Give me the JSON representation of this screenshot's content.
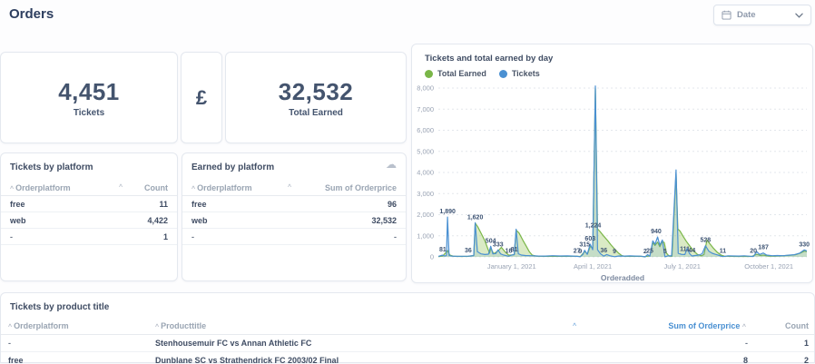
{
  "page": {
    "title": "Orders"
  },
  "toolbar": {
    "date_button": {
      "label": "Date",
      "icon": "calendar-icon",
      "chevron_icon": "chevron-down-icon"
    }
  },
  "icons": {
    "sort_caret": "^",
    "cloud_export": "☁"
  },
  "colors": {
    "accent_blue": "#4a90d2",
    "accent_green": "#7ab648",
    "text_dark": "#3f4c63",
    "text_gray": "#9aa5b3"
  },
  "kpis": {
    "tickets": {
      "value": "4,451",
      "label": "Tickets"
    },
    "currency": {
      "symbol": "£"
    },
    "total_earned": {
      "value": "32,532",
      "label": "Total Earned"
    }
  },
  "tables": {
    "tickets_by_platform": {
      "title": "Tickets by platform",
      "columns": [
        "Orderplatform",
        "Count"
      ],
      "rows": [
        [
          "free",
          "11"
        ],
        [
          "web",
          "4,422"
        ],
        [
          "-",
          "1"
        ]
      ]
    },
    "earned_by_platform": {
      "title": "Earned by platform",
      "columns": [
        "Orderplatform",
        "Sum of Orderprice"
      ],
      "rows": [
        [
          "free",
          "96"
        ],
        [
          "web",
          "32,532"
        ],
        [
          "-",
          "-"
        ]
      ]
    },
    "tickets_by_product_title": {
      "title": "Tickets by product title",
      "columns": [
        "Orderplatform",
        "Producttitle",
        "Sum of Orderprice",
        "Count"
      ],
      "sorted_column": "Sum of Orderprice",
      "rows": [
        [
          "-",
          "Stenhousemuir FC vs Annan Athletic FC",
          "-",
          "1"
        ],
        [
          "free",
          "Dunblane SC vs Strathendrick FC 2003/02 Final",
          "8",
          "2"
        ]
      ]
    }
  },
  "chart_data": {
    "type": "line",
    "title": "Tickets and total earned by day",
    "xlabel": "Orderadded",
    "ylabel": "",
    "ylim": [
      0,
      8000
    ],
    "grid": "dashed-horizontal",
    "legend_position": "top-left",
    "y_ticks": [
      "0",
      "1,000",
      "2,000",
      "3,000",
      "4,000",
      "5,000",
      "6,000",
      "7,000",
      "8,000"
    ],
    "x_ticks": [
      {
        "label": "January 1, 2021",
        "pos": 19.9
      },
      {
        "label": "April 1, 2021",
        "pos": 41.9
      },
      {
        "label": "July 1, 2021",
        "pos": 66.2
      },
      {
        "label": "October 1, 2021",
        "pos": 89.7
      }
    ],
    "series": [
      {
        "name": "Total Earned",
        "color": "#7ab648",
        "fill": "rgba(150,195,90,0.35)",
        "points": [
          [
            0,
            14
          ],
          [
            1.2,
            45
          ],
          [
            2.5,
            300
          ],
          [
            3.1,
            85
          ],
          [
            4.2,
            26
          ],
          [
            6,
            20
          ],
          [
            8.1,
            25
          ],
          [
            9.6,
            65
          ],
          [
            10,
            1600
          ],
          [
            10.7,
            1430
          ],
          [
            11.6,
            1120
          ],
          [
            12.6,
            770
          ],
          [
            13.4,
            400
          ],
          [
            13.9,
            170
          ],
          [
            14.2,
            420
          ],
          [
            15,
            150
          ],
          [
            16.2,
            280
          ],
          [
            17.1,
            450
          ],
          [
            18.1,
            240
          ],
          [
            19.1,
            80
          ],
          [
            20.6,
            100
          ],
          [
            21.1,
            1270
          ],
          [
            21.9,
            1130
          ],
          [
            22.9,
            800
          ],
          [
            23.9,
            500
          ],
          [
            24.7,
            240
          ],
          [
            25.5,
            80
          ],
          [
            26.6,
            35
          ],
          [
            28.5,
            26
          ],
          [
            30.5,
            26
          ],
          [
            32.5,
            28
          ],
          [
            34.5,
            26
          ],
          [
            36.5,
            28
          ],
          [
            37.6,
            36
          ],
          [
            38.5,
            16
          ],
          [
            39.7,
            250
          ],
          [
            40.5,
            150
          ],
          [
            41.2,
            500
          ],
          [
            41.9,
            420
          ],
          [
            42.6,
            7980
          ],
          [
            43.2,
            1330
          ],
          [
            43.9,
            1200
          ],
          [
            44.9,
            980
          ],
          [
            45.9,
            780
          ],
          [
            46.9,
            560
          ],
          [
            47.9,
            360
          ],
          [
            48.9,
            180
          ],
          [
            49.7,
            70
          ],
          [
            50.6,
            30
          ],
          [
            52.5,
            24
          ],
          [
            54.5,
            24
          ],
          [
            56.1,
            15
          ],
          [
            57.4,
            50
          ],
          [
            58.2,
            680
          ],
          [
            58.8,
            540
          ],
          [
            59.5,
            700
          ],
          [
            60.1,
            480
          ],
          [
            60.8,
            740
          ],
          [
            61.3,
            680
          ],
          [
            61.9,
            180
          ],
          [
            62.6,
            40
          ],
          [
            63.4,
            30
          ],
          [
            64.5,
            3950
          ],
          [
            65,
            1320
          ],
          [
            65.6,
            1220
          ],
          [
            66.4,
            980
          ],
          [
            67.3,
            740
          ],
          [
            68.3,
            500
          ],
          [
            69.3,
            280
          ],
          [
            70.3,
            120
          ],
          [
            71.3,
            50
          ],
          [
            72.1,
            110
          ],
          [
            72.9,
            800
          ],
          [
            73.7,
            620
          ],
          [
            74.7,
            400
          ],
          [
            75.7,
            220
          ],
          [
            76.7,
            90
          ],
          [
            77.6,
            35
          ],
          [
            79.2,
            24
          ],
          [
            81,
            22
          ],
          [
            83,
            26
          ],
          [
            85,
            20
          ],
          [
            86.4,
            120
          ],
          [
            87.4,
            70
          ],
          [
            88.2,
            85
          ],
          [
            89.6,
            45
          ],
          [
            91,
            40
          ],
          [
            93,
            50
          ],
          [
            95,
            68
          ],
          [
            96.9,
            100
          ],
          [
            98.3,
            185
          ],
          [
            99.3,
            270
          ],
          [
            100,
            250
          ]
        ]
      },
      {
        "name": "Tickets",
        "color": "#4a90d2",
        "fill": "rgba(74,144,210,0.14)",
        "points": [
          [
            0,
            25
          ],
          [
            0.8,
            70
          ],
          [
            1.2,
            81
          ],
          [
            1.7,
            45
          ],
          [
            2.2,
            55
          ],
          [
            2.5,
            1890
          ],
          [
            2.9,
            65
          ],
          [
            3.6,
            40
          ],
          [
            5,
            32
          ],
          [
            6.5,
            30
          ],
          [
            8.1,
            36
          ],
          [
            9,
            48
          ],
          [
            9.6,
            55
          ],
          [
            10,
            1620
          ],
          [
            10.6,
            250
          ],
          [
            11.6,
            140
          ],
          [
            12.6,
            110
          ],
          [
            13.6,
            130
          ],
          [
            14.2,
            504
          ],
          [
            14.8,
            140
          ],
          [
            15.6,
            160
          ],
          [
            16.2,
            333
          ],
          [
            16.9,
            140
          ],
          [
            17.7,
            85
          ],
          [
            18.5,
            55
          ],
          [
            19.1,
            30
          ],
          [
            19.9,
            85
          ],
          [
            20.6,
            110
          ],
          [
            21.1,
            1310
          ],
          [
            21.7,
            150
          ],
          [
            22.5,
            85
          ],
          [
            23.6,
            65
          ],
          [
            25,
            55
          ],
          [
            27,
            45
          ],
          [
            29,
            40
          ],
          [
            31,
            55
          ],
          [
            33,
            42
          ],
          [
            35,
            48
          ],
          [
            36.6,
            38
          ],
          [
            37.6,
            27
          ],
          [
            38.5,
            9
          ],
          [
            39.2,
            110
          ],
          [
            39.7,
            315
          ],
          [
            40.4,
            120
          ],
          [
            41.2,
            603
          ],
          [
            41.9,
            340
          ],
          [
            42.6,
            8100
          ],
          [
            43.2,
            340
          ],
          [
            44,
            150
          ],
          [
            44.9,
            36
          ],
          [
            45.7,
            110
          ],
          [
            46.5,
            55
          ],
          [
            47.8,
            9
          ],
          [
            49,
            42
          ],
          [
            50.5,
            38
          ],
          [
            52,
            48
          ],
          [
            53.5,
            40
          ],
          [
            55,
            36
          ],
          [
            56.1,
            2
          ],
          [
            56.8,
            110
          ],
          [
            57.4,
            25
          ],
          [
            58.2,
            760
          ],
          [
            58.8,
            600
          ],
          [
            59.5,
            940
          ],
          [
            60.1,
            560
          ],
          [
            60.8,
            800
          ],
          [
            61.5,
            5
          ],
          [
            62.4,
            55
          ],
          [
            63.3,
            48
          ],
          [
            64.5,
            4120
          ],
          [
            65.1,
            170
          ],
          [
            66,
            115
          ],
          [
            66.9,
            111
          ],
          [
            67.5,
            400
          ],
          [
            68.2,
            150
          ],
          [
            68.8,
            44
          ],
          [
            69.7,
            65
          ],
          [
            70.7,
            85
          ],
          [
            71.6,
            150
          ],
          [
            72.5,
            528
          ],
          [
            73.4,
            270
          ],
          [
            74.3,
            170
          ],
          [
            75.3,
            115
          ],
          [
            76.3,
            65
          ],
          [
            77.2,
            11
          ],
          [
            78.6,
            50
          ],
          [
            80,
            42
          ],
          [
            81.6,
            38
          ],
          [
            83,
            52
          ],
          [
            84.6,
            32
          ],
          [
            85.5,
            20
          ],
          [
            86.4,
            250
          ],
          [
            87.2,
            115
          ],
          [
            88.2,
            187
          ],
          [
            89.1,
            85
          ],
          [
            90.6,
            58
          ],
          [
            92,
            66
          ],
          [
            93.6,
            58
          ],
          [
            95,
            80
          ],
          [
            96.6,
            105
          ],
          [
            98,
            170
          ],
          [
            99.3,
            330
          ],
          [
            100,
            285
          ]
        ]
      }
    ],
    "point_labels": [
      {
        "x": 1.2,
        "y": 81,
        "text": "81"
      },
      {
        "x": 2.5,
        "y": 1890,
        "text": "1,890"
      },
      {
        "x": 8.1,
        "y": 36,
        "text": "36"
      },
      {
        "x": 10,
        "y": 1620,
        "text": "1,620"
      },
      {
        "x": 14.2,
        "y": 504,
        "text": "504"
      },
      {
        "x": 16.2,
        "y": 333,
        "text": "333"
      },
      {
        "x": 19.1,
        "y": 16,
        "text": "16"
      },
      {
        "x": 20.6,
        "y": 81,
        "text": "81"
      },
      {
        "x": 37.6,
        "y": 27,
        "text": "27"
      },
      {
        "x": 38.5,
        "y": 9,
        "text": "9"
      },
      {
        "x": 39.7,
        "y": 315,
        "text": "315"
      },
      {
        "x": 41.2,
        "y": 603,
        "text": "603"
      },
      {
        "x": 42,
        "y": 1224,
        "text": "1,224"
      },
      {
        "x": 44.9,
        "y": 36,
        "text": "36"
      },
      {
        "x": 47.8,
        "y": 9,
        "text": "9"
      },
      {
        "x": 56.1,
        "y": 2,
        "text": "2"
      },
      {
        "x": 57.4,
        "y": 25,
        "text": "25"
      },
      {
        "x": 59.1,
        "y": 940,
        "text": "940"
      },
      {
        "x": 61.5,
        "y": 5,
        "text": "5"
      },
      {
        "x": 66.9,
        "y": 111,
        "text": "111"
      },
      {
        "x": 68.8,
        "y": 44,
        "text": "44"
      },
      {
        "x": 72.5,
        "y": 528,
        "text": "528"
      },
      {
        "x": 77.2,
        "y": 11,
        "text": "11"
      },
      {
        "x": 85.5,
        "y": 20,
        "text": "20"
      },
      {
        "x": 88.2,
        "y": 187,
        "text": "187"
      },
      {
        "x": 99.3,
        "y": 330,
        "text": "330"
      }
    ]
  }
}
